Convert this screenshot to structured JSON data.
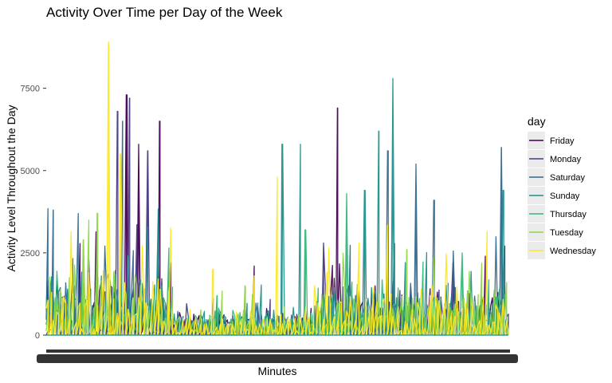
{
  "chart_data": {
    "type": "line",
    "title": "Activity Over Time per Day of the Week",
    "xlabel": "Minutes",
    "ylabel": "Activity Level Throughout the Day",
    "yticks": [
      0,
      2500,
      5000,
      7500
    ],
    "ylim": [
      0,
      9000
    ],
    "x_tick_labels": "dense, unreadable (one per minute)",
    "grid": false,
    "legend": {
      "title": "day",
      "placement": "right",
      "entries": [
        "Friday",
        "Monday",
        "Saturday",
        "Sunday",
        "Thursday",
        "Tuesday",
        "Wednesday"
      ]
    },
    "colors": {
      "Friday": "#440154",
      "Monday": "#443A83",
      "Saturday": "#31688E",
      "Sunday": "#21908C",
      "Thursday": "#35B779",
      "Tuesday": "#8FD744",
      "Wednesday": "#FDE725"
    },
    "series": [
      {
        "name": "Friday",
        "peaks": [
          [
            0.175,
            7300
          ],
          [
            0.245,
            6500
          ],
          [
            0.2,
            5800
          ],
          [
            0.63,
            6900
          ],
          [
            0.45,
            2100
          ],
          [
            0.95,
            2400
          ]
        ]
      },
      {
        "name": "Monday",
        "peaks": [
          [
            0.18,
            7200
          ],
          [
            0.155,
            6800
          ],
          [
            0.22,
            5600
          ],
          [
            0.6,
            2800
          ],
          [
            0.88,
            2200
          ]
        ]
      },
      {
        "name": "Saturday",
        "peaks": [
          [
            0.165,
            6500
          ],
          [
            0.015,
            3800
          ],
          [
            0.74,
            5600
          ],
          [
            0.8,
            5200
          ],
          [
            0.985,
            5700
          ],
          [
            0.84,
            4100
          ]
        ]
      },
      {
        "name": "Sunday",
        "peaks": [
          [
            0.75,
            7800
          ],
          [
            0.72,
            6200
          ],
          [
            0.51,
            5800
          ],
          [
            0.55,
            5800
          ],
          [
            0.69,
            4400
          ],
          [
            0.99,
            4400
          ]
        ]
      },
      {
        "name": "Thursday",
        "peaks": [
          [
            0.65,
            4300
          ],
          [
            0.56,
            3200
          ],
          [
            0.37,
            1200
          ],
          [
            0.9,
            2500
          ]
        ]
      },
      {
        "name": "Tuesday",
        "peaks": [
          [
            0.11,
            3700
          ],
          [
            0.08,
            2900
          ],
          [
            0.43,
            1500
          ],
          [
            0.78,
            2600
          ]
        ]
      },
      {
        "name": "Wednesday",
        "peaks": [
          [
            0.135,
            8900
          ],
          [
            0.16,
            5500
          ],
          [
            0.5,
            4800
          ],
          [
            0.36,
            2000
          ],
          [
            0.45,
            1800
          ]
        ]
      }
    ]
  }
}
